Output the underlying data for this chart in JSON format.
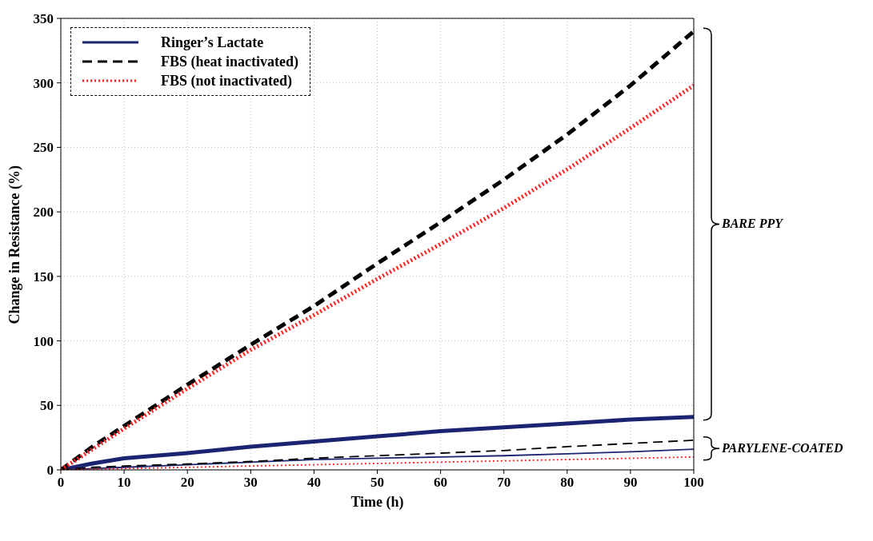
{
  "chart_data": {
    "type": "line",
    "xlabel": "Time (h)",
    "ylabel": "Change in Resistance (%)",
    "x": [
      0,
      5,
      10,
      20,
      30,
      40,
      50,
      60,
      70,
      80,
      90,
      100
    ],
    "xlim": [
      0,
      100
    ],
    "xticks": [
      0,
      10,
      20,
      30,
      40,
      50,
      60,
      70,
      80,
      90,
      100
    ],
    "ylim": [
      0,
      350
    ],
    "yticks": [
      0,
      50,
      100,
      150,
      200,
      250,
      300,
      350
    ],
    "grid": true,
    "legend": "top left",
    "marker": "none",
    "series": [
      {
        "name": "Ringer’s Lactate",
        "color": "#1c2370",
        "line_style": "solid",
        "values": [
          0,
          5,
          9,
          13,
          18,
          22,
          26,
          30,
          33,
          36,
          39,
          41
        ]
      },
      {
        "name": "FBS (heat inactivated)",
        "color": "#000000",
        "line_style": "dashed",
        "values": [
          0,
          18,
          34,
          66,
          97,
          127,
          160,
          192,
          225,
          260,
          298,
          340
        ]
      },
      {
        "name": "FBS (not inactivated)",
        "color": "#ff2020",
        "line_style": "dotted",
        "values": [
          0,
          16,
          32,
          63,
          93,
          120,
          148,
          175,
          203,
          233,
          265,
          298
        ]
      },
      {
        "color": "#1c2370",
        "line_style": "solid",
        "values": [
          0,
          1,
          2,
          4,
          6,
          8,
          9,
          10,
          11,
          12.5,
          14,
          16
        ]
      },
      {
        "color": "#000000",
        "line_style": "dashed",
        "values": [
          0,
          2,
          3,
          4.5,
          6.5,
          9,
          11,
          13,
          15,
          18,
          20.5,
          23
        ]
      },
      {
        "color": "#ff2020",
        "line_style": "dotted",
        "values": [
          0,
          0.5,
          1,
          2,
          3,
          4,
          5,
          6,
          7,
          8,
          9,
          10
        ]
      }
    ],
    "annotations": [
      "BARE PPY",
      "PARYLENE-COATED"
    ]
  }
}
